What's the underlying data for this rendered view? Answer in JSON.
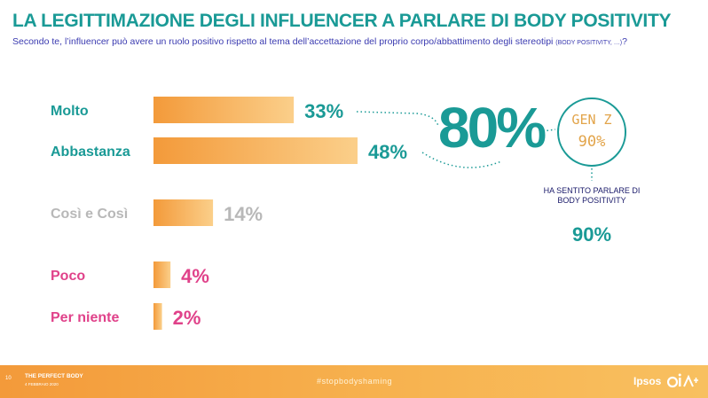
{
  "header": {
    "title": "LA LEGITTIMAZIONE DEGLI INFLUENCER A PARLARE DI BODY POSITIVITY",
    "subtitle": "Secondo te, l’influencer può avere un ruolo positivo rispetto al tema dell’accettazione del proprio corpo/abbattimento degli stereotipi",
    "subtitle_small": "(BODY POSITIVITY, …)",
    "subtitle_end": "?"
  },
  "chart_data": {
    "type": "bar",
    "orientation": "horizontal",
    "categories": [
      "Molto",
      "Abbastanza",
      "Così e Così",
      "Poco",
      "Per niente"
    ],
    "values": [
      33,
      48,
      14,
      4,
      2
    ],
    "labels": [
      "33%",
      "48%",
      "14%",
      "4%",
      "2%"
    ],
    "category_colors": [
      "#1a9a96",
      "#1a9a96",
      "#b8b8b8",
      "#e0428a",
      "#e0428a"
    ],
    "bar_color": "#f5a54a",
    "grid": false
  },
  "summary": {
    "total_positive": "80%",
    "genz_label": "GEN Z",
    "genz_value": "90%",
    "aware_text": "HA SENTITO PARLARE DI BODY POSITIVITY",
    "aware_value": "90%"
  },
  "footer": {
    "page": "10",
    "brand": "THE PERFECT BODY",
    "date": "4 FEBBRAIO 2020",
    "hashtag": "#stopbodyshaming",
    "logo": "Ipsos"
  },
  "colors": {
    "teal": "#1a9a96",
    "orange": "#f5a54a",
    "pink": "#e0428a",
    "grey": "#b8b8b8",
    "navy": "#3a3ab0"
  }
}
